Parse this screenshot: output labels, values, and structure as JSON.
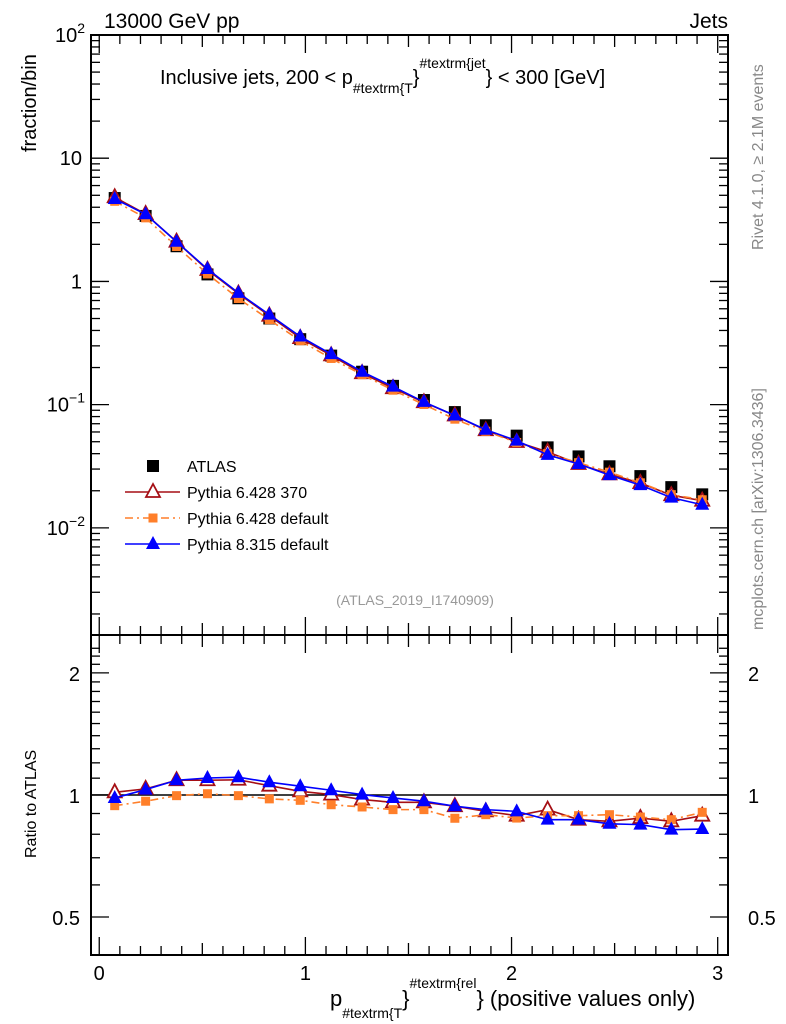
{
  "header": {
    "left": "13000 GeV pp",
    "right": "Jets"
  },
  "side_text": {
    "top": "Rivet 4.1.0, ≥ 2.1M events",
    "bottom": "mcplots.cern.ch [arXiv:1306.3436]"
  },
  "watermark": "(ATLAS_2019_I1740909)",
  "chart_data": [
    {
      "type": "line",
      "title_parts": [
        "Inclusive jets, 200 < p",
        "#textrm{T",
        "}",
        "#textrm{jet",
        "} < 300 [GeV]"
      ],
      "ylabel": "fraction/bin",
      "yscale": "log",
      "ylim": [
        0.00135,
        100
      ],
      "xlim": [
        -0.04,
        3.05
      ],
      "ytick_labels": [
        {
          "value": 100,
          "base": "10",
          "exp": "2"
        },
        {
          "value": 10,
          "base": "10",
          "exp": ""
        },
        {
          "value": 1,
          "base": "1",
          "exp": ""
        },
        {
          "value": 0.1,
          "base": "10",
          "exp": "−1"
        },
        {
          "value": 0.01,
          "base": "10",
          "exp": "−2"
        }
      ],
      "x": [
        0.075,
        0.225,
        0.375,
        0.525,
        0.675,
        0.825,
        0.975,
        1.125,
        1.275,
        1.425,
        1.575,
        1.725,
        1.875,
        2.025,
        2.175,
        2.325,
        2.475,
        2.625,
        2.775,
        2.925
      ],
      "series": [
        {
          "name": "ATLAS",
          "color": "#000000",
          "marker": "square",
          "line": "none",
          "values": [
            4.75,
            3.4,
            1.93,
            1.14,
            0.73,
            0.5,
            0.34,
            0.25,
            0.185,
            0.142,
            0.109,
            0.087,
            0.068,
            0.056,
            0.045,
            0.038,
            0.0316,
            0.0263,
            0.0214,
            0.0187
          ]
        },
        {
          "name": "Pythia 6.428 370",
          "color": "#a50f15",
          "marker": "open-triangle",
          "line": "solid",
          "values": [
            4.82,
            3.52,
            2.1,
            1.24,
            0.796,
            0.527,
            0.347,
            0.251,
            0.18,
            0.136,
            0.1045,
            0.0816,
            0.062,
            0.0498,
            0.0414,
            0.033,
            0.0272,
            0.0231,
            0.0184,
            0.0166
          ]
        },
        {
          "name": "Pythia 6.428 default",
          "color": "#ff7f2a",
          "marker": "square-small",
          "line": "dashdot",
          "values": [
            4.47,
            3.28,
            1.92,
            1.15,
            0.727,
            0.489,
            0.33,
            0.237,
            0.175,
            0.131,
            0.1003,
            0.0762,
            0.0608,
            0.0493,
            0.04,
            0.0338,
            0.0283,
            0.0232,
            0.0186,
            0.0169
          ]
        },
        {
          "name": "Pythia 8.315 default",
          "color": "#0000ff",
          "marker": "triangle",
          "line": "solid",
          "values": [
            4.67,
            3.51,
            2.1,
            1.26,
            0.807,
            0.538,
            0.357,
            0.257,
            0.185,
            0.14,
            0.1052,
            0.0816,
            0.0626,
            0.051,
            0.0391,
            0.033,
            0.0268,
            0.0222,
            0.0176,
            0.0154
          ]
        }
      ],
      "legend_placement": "lower-left"
    },
    {
      "type": "line",
      "ylabel": "Ratio to ATLAS",
      "xlabel_parts": [
        "p",
        "#textrm{T",
        "}",
        "#textrm{rel",
        "} (positive values only)"
      ],
      "yscale": "log",
      "ylim": [
        0.403,
        2.48
      ],
      "xlim": [
        -0.04,
        3.05
      ],
      "ytick_labels": [
        {
          "value": 2,
          "label": "2"
        },
        {
          "value": 1,
          "label": "1"
        },
        {
          "value": 0.5,
          "label": "0.5"
        }
      ],
      "xtick_labels": [
        {
          "value": 0,
          "label": "0"
        },
        {
          "value": 1,
          "label": "1"
        },
        {
          "value": 2,
          "label": "2"
        },
        {
          "value": 3,
          "label": "3"
        }
      ],
      "series": [
        {
          "name": "Pythia 6.428 370",
          "values": [
            1.015,
            1.035,
            1.087,
            1.087,
            1.09,
            1.054,
            1.021,
            1.002,
            0.974,
            0.959,
            0.959,
            0.938,
            0.911,
            0.889,
            0.92,
            0.869,
            0.861,
            0.877,
            0.861,
            0.889
          ]
        },
        {
          "name": "Pythia 6.428 default",
          "values": [
            0.941,
            0.965,
            0.996,
            1.007,
            0.996,
            0.978,
            0.97,
            0.946,
            0.934,
            0.92,
            0.92,
            0.876,
            0.894,
            0.877,
            0.889,
            0.889,
            0.894,
            0.882,
            0.869,
            0.906
          ]
        },
        {
          "name": "Pythia 8.315 default",
          "values": [
            0.983,
            1.031,
            1.087,
            1.101,
            1.106,
            1.075,
            1.051,
            1.027,
            1.002,
            0.983,
            0.965,
            0.938,
            0.92,
            0.911,
            0.869,
            0.869,
            0.849,
            0.845,
            0.821,
            0.824
          ]
        }
      ]
    }
  ]
}
